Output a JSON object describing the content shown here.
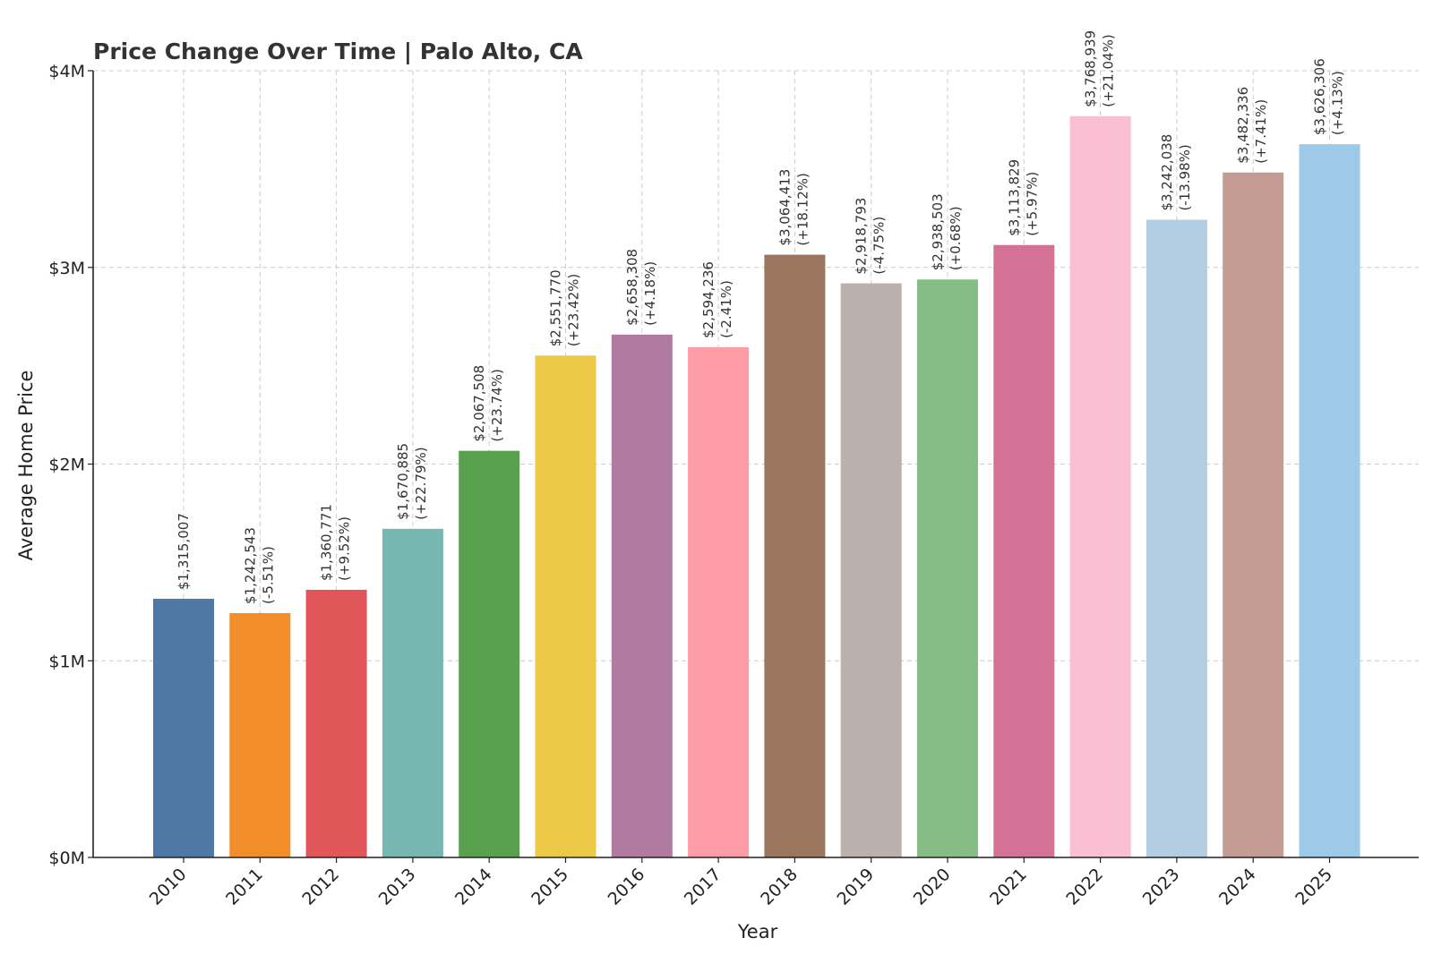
{
  "chart_data": {
    "type": "bar",
    "title": "Price Change Over Time | Palo Alto, CA",
    "xlabel": "Year",
    "ylabel": "Average Home Price",
    "ylim": [
      0,
      4000000
    ],
    "yticks": [
      0,
      1000000,
      2000000,
      3000000,
      4000000
    ],
    "ytick_labels": [
      "$0M",
      "$1M",
      "$2M",
      "$3M",
      "$4M"
    ],
    "grid": true,
    "categories": [
      "2010",
      "2011",
      "2012",
      "2013",
      "2014",
      "2015",
      "2016",
      "2017",
      "2018",
      "2019",
      "2020",
      "2021",
      "2022",
      "2023",
      "2024",
      "2025"
    ],
    "values": [
      1315007,
      1242543,
      1360771,
      1670885,
      2067508,
      2551770,
      2658308,
      2594236,
      3064413,
      2918793,
      2938503,
      3113829,
      3768939,
      3242038,
      3482336,
      3626306
    ],
    "value_labels": [
      "$1,315,007",
      "$1,242,543",
      "$1,360,771",
      "$1,670,885",
      "$2,067,508",
      "$2,551,770",
      "$2,658,308",
      "$2,594,236",
      "$3,064,413",
      "$2,918,793",
      "$2,938,503",
      "$3,113,829",
      "$3,768,939",
      "$3,242,038",
      "$3,482,336",
      "$3,626,306"
    ],
    "change_labels": [
      "",
      "(-5.51%)",
      "(+9.52%)",
      "(+22.79%)",
      "(+23.74%)",
      "(+23.42%)",
      "(+4.18%)",
      "(-2.41%)",
      "(+18.12%)",
      "(-4.75%)",
      "(+0.68%)",
      "(+5.97%)",
      "(+21.04%)",
      "(-13.98%)",
      "(+7.41%)",
      "(+4.13%)"
    ],
    "colors": [
      "#4e79a7",
      "#f28e2b",
      "#e15759",
      "#76b7b2",
      "#59a14f",
      "#edc948",
      "#b07aa1",
      "#ff9da7",
      "#9c755f",
      "#bab0ac",
      "#86bc86",
      "#d37295",
      "#fabfd2",
      "#b3cde3",
      "#c49c94",
      "#9ecae9"
    ]
  }
}
